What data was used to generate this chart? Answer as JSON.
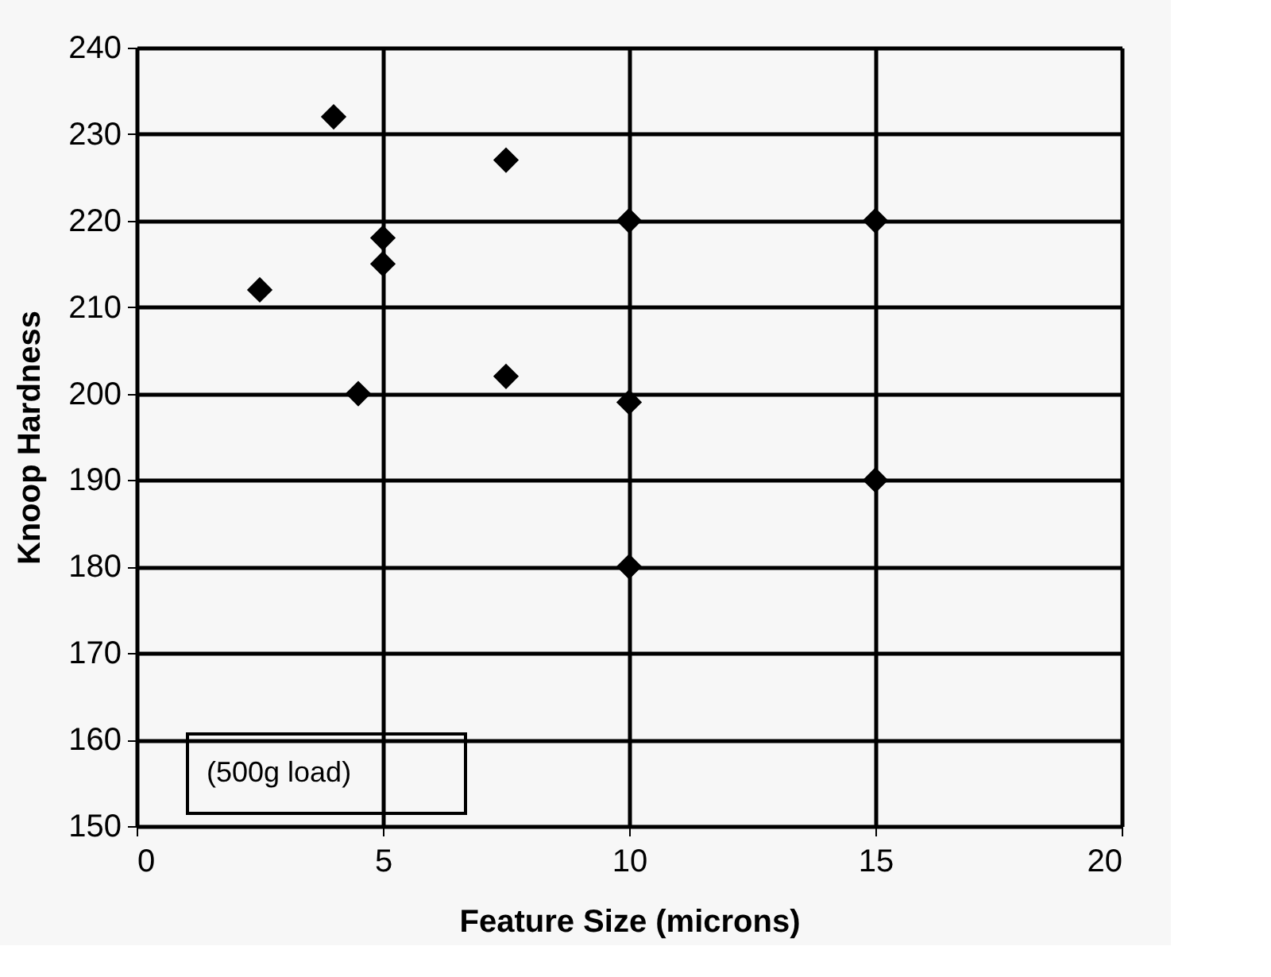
{
  "chart_data": {
    "type": "scatter",
    "xlabel": "Feature Size (microns)",
    "ylabel": "Knoop Hardness",
    "x": [
      2.5,
      4,
      4.5,
      5,
      5,
      7.5,
      7.5,
      10,
      10,
      10,
      15,
      15
    ],
    "values": [
      212,
      232,
      200,
      218,
      215,
      227,
      202,
      220,
      199,
      180,
      220,
      190
    ],
    "color": "#000000",
    "marker": "diamond",
    "xlim": [
      0,
      20
    ],
    "xticks": [
      0,
      5,
      10,
      15,
      20
    ],
    "ylim": [
      150,
      240
    ],
    "yticks": [
      150,
      160,
      170,
      180,
      190,
      200,
      210,
      220,
      230,
      240
    ],
    "grid": true,
    "annotations": [
      "(500g load)"
    ]
  }
}
